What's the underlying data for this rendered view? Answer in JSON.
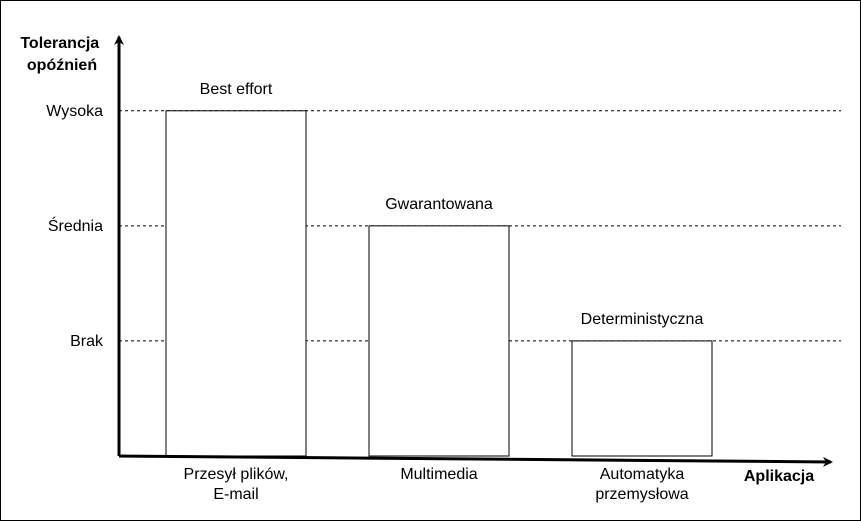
{
  "chart_data": {
    "type": "bar",
    "title": "",
    "ylabel_lines": [
      "Tolerancja",
      "opóźnień"
    ],
    "xlabel": "Aplikacja",
    "y_levels": [
      {
        "label": "Brak",
        "value": 1
      },
      {
        "label": "Średnia",
        "value": 2
      },
      {
        "label": "Wysoka",
        "value": 3
      }
    ],
    "ylim": [
      0,
      3.65
    ],
    "gridlines": "dashed at level ticks",
    "legend": "none",
    "bars": [
      {
        "category_lines": [
          "Przesył plików,",
          "E-mail"
        ],
        "label": "Best effort",
        "value": 3
      },
      {
        "category_lines": [
          "Multimedia"
        ],
        "label": "Gwarantowana",
        "value": 2
      },
      {
        "category_lines": [
          "Automatyka",
          "przemysłowa"
        ],
        "label": "Deterministyczna",
        "value": 1
      }
    ]
  }
}
